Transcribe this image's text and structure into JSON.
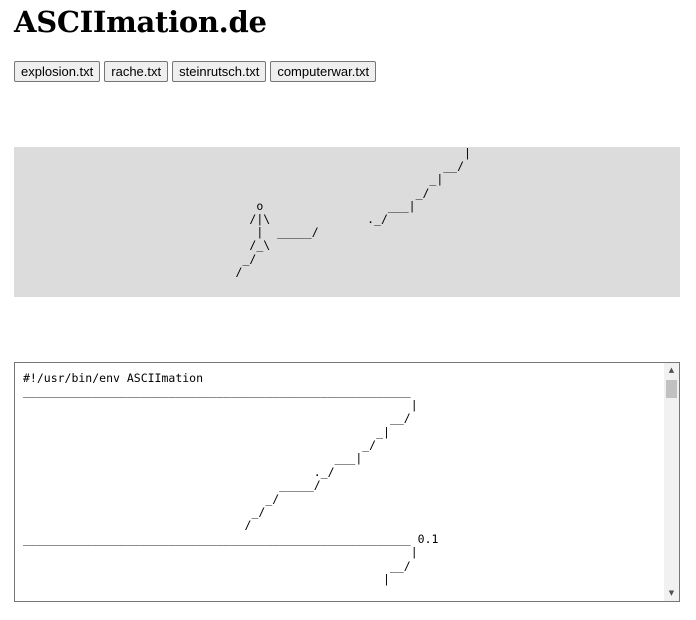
{
  "page": {
    "title": "ASCIImation.de"
  },
  "file_buttons": [
    {
      "label": "explosion.txt"
    },
    {
      "label": "rache.txt"
    },
    {
      "label": "steinrutsch.txt"
    },
    {
      "label": "computerwar.txt"
    }
  ],
  "stage": {
    "frame_text": "                                                                 |\n                                                              __/\n                                                            _|\n                                                          _/\n                                   o                  ___|\n                                  /|\\              ._/\n                                   |  _____/\n                                  /_\\\n                                 _/\n                                /",
    "background": "#dcdcdc"
  },
  "editor": {
    "header": "#!/usr/bin/env ASCIImation",
    "frame_text": "________________________________________________________\n                                                        |\n                                                     __/\n                                                   _|\n                                                 _/\n                                             ___|\n                                          ._/\n                                     _____/\n                                   _/\n                                 _/\n                                /",
    "separator_line": "________________________________________________________ 0.1",
    "next_frame_text": "                                                        |\n                                                     __/\n                                                    |",
    "scroll_up_icon": "▲",
    "scroll_down_icon": "▼"
  }
}
